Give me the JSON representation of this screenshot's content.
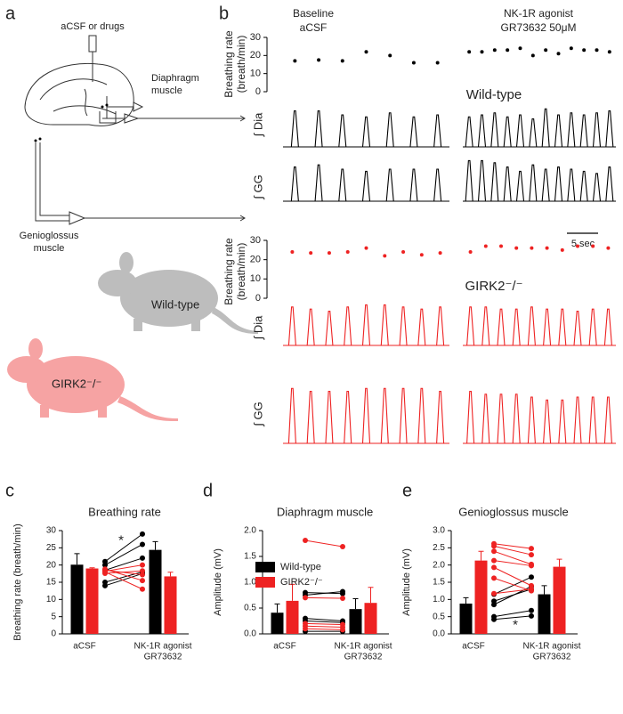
{
  "panel_labels": [
    "a",
    "b",
    "c",
    "d",
    "e"
  ],
  "panel_a": {
    "inlet": "aCSF or drugs",
    "diaphragm": [
      "Diaphragm",
      "muscle"
    ],
    "genioglossus": [
      "Genioglossus",
      "muscle"
    ],
    "mouse_wt": "Wild-type",
    "mouse_girk": "GIRK2⁻/⁻"
  },
  "panel_b": {
    "conditions": [
      [
        "Baseline",
        "aCSF"
      ],
      [
        "NK-1R agonist",
        "GR73632 50μM"
      ]
    ],
    "rate_label": [
      "Breathing rate",
      "(breath/min)"
    ],
    "dia_label": "∫ Dia",
    "gg_label": "∫ GG",
    "scale_bar": "5 sec",
    "ylim": [
      0,
      30
    ],
    "yticks": [
      0,
      10,
      20,
      30
    ],
    "groups": [
      {
        "name": "Wild-type",
        "color": "#000000",
        "rate": [
          [
            17,
            17.5,
            17,
            22,
            20,
            16,
            16
          ],
          [
            22,
            22,
            23,
            23,
            24,
            20,
            23,
            21,
            24,
            23,
            23,
            22
          ]
        ],
        "dia": [
          [
            0.9,
            0.9,
            0.8,
            0.75,
            0.85,
            0.75,
            0.8
          ],
          [
            0.75,
            0.8,
            0.85,
            0.75,
            0.8,
            0.7,
            0.95,
            0.8,
            0.85,
            0.8,
            0.85,
            0.9
          ]
        ],
        "gg": [
          [
            0.8,
            0.85,
            0.75,
            0.7,
            0.75,
            0.75,
            0.75
          ],
          [
            0.95,
            0.95,
            0.9,
            0.8,
            0.7,
            0.85,
            0.75,
            0.8,
            0.75,
            0.7,
            0.65,
            0.8
          ]
        ]
      },
      {
        "name": "GIRK2⁻/⁻",
        "color": "#ee2222",
        "rate": [
          [
            24,
            23.5,
            23.5,
            24,
            26,
            22,
            24,
            22.5,
            23.5
          ],
          [
            24,
            27,
            27,
            26,
            26,
            26,
            25,
            27,
            27,
            26
          ]
        ],
        "dia": [
          [
            0.9,
            0.85,
            0.8,
            0.9,
            0.95,
            0.95,
            0.9,
            0.85,
            0.9
          ],
          [
            0.9,
            0.9,
            0.85,
            0.85,
            0.9,
            0.85,
            0.85,
            0.8,
            0.85,
            0.85
          ]
        ],
        "gg": [
          [
            0.95,
            0.9,
            0.9,
            0.9,
            0.95,
            0.95,
            0.95,
            0.95,
            0.9
          ],
          [
            0.9,
            0.85,
            0.85,
            0.85,
            0.8,
            0.75,
            0.75,
            0.8,
            0.8,
            0.8
          ]
        ]
      }
    ]
  },
  "chart_data": [
    {
      "type": "bar",
      "title": "Breathing rate",
      "y_label": "Breathing rate (breath/min)",
      "categories": [
        [
          "aCSF"
        ],
        [
          "NK-1R agonist",
          "GR73632"
        ]
      ],
      "ylim": [
        0,
        30
      ],
      "yticks": [
        0,
        5,
        10,
        15,
        20,
        25,
        30
      ],
      "annotation": "*",
      "series": [
        {
          "color": "#000000",
          "values": [
            20.1,
            24.4
          ],
          "errors": [
            3.2,
            2.4
          ],
          "pairs": [
            [
              14,
              17.5
            ],
            [
              15,
              18
            ],
            [
              18.5,
              22
            ],
            [
              20,
              26
            ],
            [
              21,
              29
            ]
          ]
        },
        {
          "color": "#ee2222",
          "values": [
            19,
            16.7
          ],
          "errors": [
            0.2,
            1.2
          ],
          "pairs": [
            [
              18.8,
              15.5
            ],
            [
              18,
              13
            ],
            [
              18.5,
              17.2
            ],
            [
              18.2,
              20
            ],
            [
              17.6,
              18.3
            ]
          ]
        }
      ]
    },
    {
      "type": "bar",
      "title": "Diaphragm muscle",
      "y_label": "Amplitude (mV)",
      "categories": [
        [
          "aCSF"
        ],
        [
          "NK-1R agonist",
          "GR73632"
        ]
      ],
      "ylim": [
        0,
        2
      ],
      "yticks": [
        {
          "value": 0,
          "label": "0.0"
        },
        {
          "value": 0.5,
          "label": "0.5"
        },
        {
          "value": 1,
          "label": "1.0"
        },
        {
          "value": 1.5,
          "label": "1.5"
        },
        {
          "value": 2,
          "label": "2.0"
        }
      ],
      "series": [
        {
          "name": "Wild-type",
          "color": "#000000",
          "values": [
            0.41,
            0.48
          ],
          "errors": [
            0.17,
            0.2
          ],
          "pairs": [
            [
              0.8,
              0.78
            ],
            [
              0.75,
              0.82
            ],
            [
              0.3,
              0.25
            ],
            [
              0.25,
              0.22
            ],
            [
              0.05,
              0.05
            ]
          ]
        },
        {
          "name": "GIRK2⁻/⁻",
          "color": "#ee2222",
          "values": [
            0.64,
            0.6
          ],
          "errors": [
            0.32,
            0.3
          ],
          "pairs": [
            [
              1.81,
              1.69
            ],
            [
              0.7,
              0.69
            ],
            [
              0.2,
              0.18
            ],
            [
              0.15,
              0.13
            ],
            [
              0.1,
              0.08
            ]
          ]
        }
      ]
    },
    {
      "type": "bar",
      "title": "Genioglossus muscle",
      "y_label": "Amplitude (mV)",
      "categories": [
        [
          "aCSF"
        ],
        [
          "NK-1R agonist",
          "GR73632"
        ]
      ],
      "ylim": [
        0,
        3
      ],
      "yticks": [
        {
          "value": 0,
          "label": "0.0"
        },
        {
          "value": 0.5,
          "label": "0.5"
        },
        {
          "value": 1,
          "label": "1.0"
        },
        {
          "value": 1.5,
          "label": "1.5"
        },
        {
          "value": 2,
          "label": "2.0"
        },
        {
          "value": 2.5,
          "label": "2.5"
        },
        {
          "value": 3,
          "label": "3.0"
        }
      ],
      "annotation": "*",
      "series": [
        {
          "color": "#000000",
          "values": [
            0.88,
            1.15
          ],
          "errors": [
            0.17,
            0.25
          ],
          "pairs": [
            [
              0.42,
              0.52
            ],
            [
              0.5,
              0.68
            ],
            [
              0.95,
              1.3
            ],
            [
              1.15,
              1.65
            ],
            [
              0.85,
              1.38
            ]
          ]
        },
        {
          "color": "#ee2222",
          "values": [
            2.13,
            1.95
          ],
          "errors": [
            0.27,
            0.22
          ],
          "pairs": [
            [
              2.62,
              2.48
            ],
            [
              2.55,
              2.3
            ],
            [
              2.4,
              2.02
            ],
            [
              2.13,
              1.98
            ],
            [
              1.93,
              1.4
            ],
            [
              1.62,
              1.25
            ],
            [
              1.17,
              1.3
            ]
          ]
        }
      ]
    }
  ]
}
